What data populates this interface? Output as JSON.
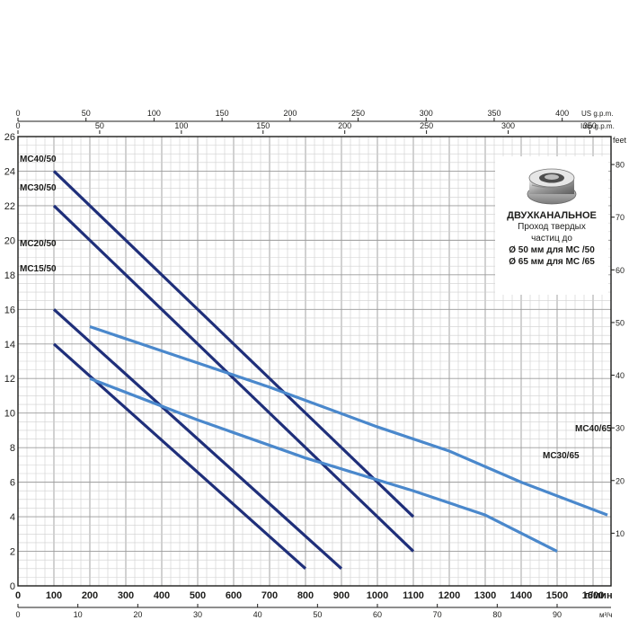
{
  "chart_data": {
    "type": "line",
    "title": "",
    "xlabel": "л/мин",
    "ylabel": "",
    "xlim": [
      0,
      1650
    ],
    "ylim": [
      0,
      26
    ],
    "grid": true,
    "left_axis": {
      "ticks": [
        0,
        2,
        4,
        6,
        8,
        10,
        12,
        14,
        16,
        18,
        20,
        22,
        24,
        26
      ]
    },
    "right_axis": {
      "unit": "feet",
      "ticks": [
        10,
        20,
        30,
        40,
        50,
        60,
        70,
        80
      ]
    },
    "bottom_axis": {
      "unit": "л/мин",
      "ticks": [
        0,
        100,
        200,
        300,
        400,
        500,
        600,
        700,
        800,
        900,
        1000,
        1100,
        1200,
        1300,
        1400,
        1500,
        1600
      ]
    },
    "bottom2_axis": {
      "unit": "м³/ч",
      "ticks": [
        0,
        10,
        20,
        30,
        40,
        50,
        60,
        70,
        80,
        90
      ]
    },
    "top_axis_us": {
      "unit": "US g.p.m.",
      "ticks": [
        0,
        50,
        100,
        150,
        200,
        250,
        300,
        350,
        400
      ]
    },
    "top_axis_imp": {
      "unit": "Imp g.p.m.",
      "ticks": [
        0,
        50,
        100,
        150,
        200,
        250,
        300,
        350
      ]
    },
    "series": [
      {
        "name": "MC15/50",
        "color": "#1f2f7a",
        "points": [
          [
            100,
            14
          ],
          [
            800,
            1
          ]
        ]
      },
      {
        "name": "MC20/50",
        "color": "#1f2f7a",
        "points": [
          [
            100,
            16
          ],
          [
            900,
            1
          ]
        ]
      },
      {
        "name": "MC30/50",
        "color": "#1f2f7a",
        "points": [
          [
            100,
            22
          ],
          [
            1100,
            2
          ]
        ]
      },
      {
        "name": "MC40/50",
        "color": "#1f2f7a",
        "points": [
          [
            100,
            24
          ],
          [
            1100,
            4
          ]
        ]
      },
      {
        "name": "MC30/65",
        "color": "#4a88cc",
        "points": [
          [
            200,
            12
          ],
          [
            500,
            9.6
          ],
          [
            800,
            7.4
          ],
          [
            1100,
            5.5
          ],
          [
            1300,
            4.1
          ],
          [
            1500,
            2
          ]
        ]
      },
      {
        "name": "MC40/65",
        "color": "#4a88cc",
        "points": [
          [
            200,
            15
          ],
          [
            400,
            13.6
          ],
          [
            700,
            11.5
          ],
          [
            1000,
            9.2
          ],
          [
            1200,
            7.8
          ],
          [
            1400,
            6
          ],
          [
            1640,
            4.1
          ]
        ]
      }
    ]
  },
  "info_box": {
    "title": "ДВУХКАНАЛЬНОЕ",
    "line1": "Проход твердых",
    "line2": "частиц до",
    "line3": "Ø 50 мм для MC /50",
    "line4": "Ø 65 мм для MC /65",
    "icon": "impeller-image"
  }
}
